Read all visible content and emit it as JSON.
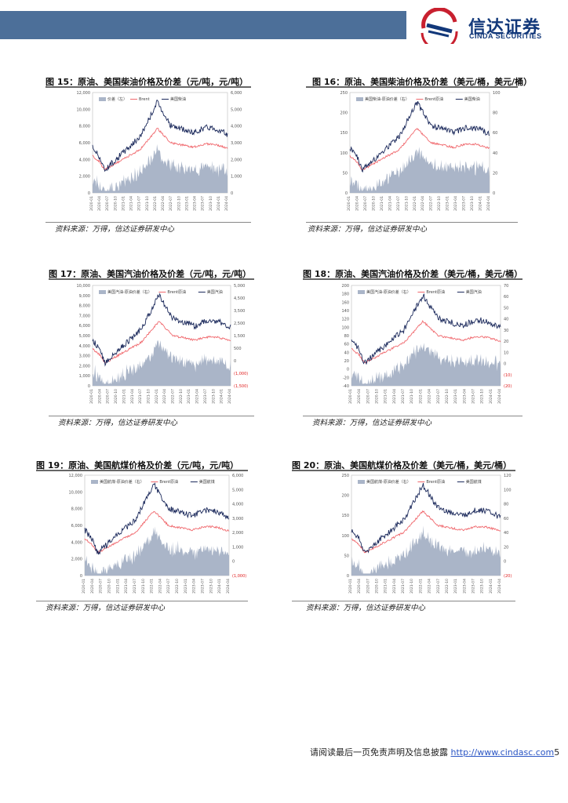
{
  "header": {
    "company_name": "信达证券",
    "company_name_en": "CINDA SECURITIES",
    "colors": {
      "bar": "#4c6f99",
      "logo_red": "#c8202f",
      "logo_blue": "#12387a"
    }
  },
  "figures": [
    {
      "title": "图 15：原油、美国柴油价格及价差（元/吨，元/吨）",
      "source": "资料来源：万得，信达证券研发中心",
      "chart_data": {
        "type": "area+line",
        "series": [
          {
            "name": "价差（左）",
            "kind": "area",
            "axis": "left"
          },
          {
            "name": "Brent",
            "kind": "line",
            "axis": "right"
          },
          {
            "name": "美国柴油",
            "kind": "line",
            "axis": "right"
          }
        ],
        "left_ticks": [
          "12,000",
          "10,000",
          "8,000",
          "6,000",
          "4,000",
          "2,000",
          "0"
        ],
        "right_ticks": [
          "6,000",
          "5,000",
          "4,000",
          "3,000",
          "2,000",
          "1,000",
          "0"
        ],
        "x_ticks": [
          "2020-01",
          "2020-04",
          "2020-07",
          "2020-10",
          "2021-01",
          "2021-04",
          "2021-07",
          "2021-10",
          "2022-01",
          "2022-04",
          "2022-07",
          "2022-10",
          "2023-01",
          "2023-04",
          "2023-07",
          "2023-10",
          "2024-01",
          "2024-04"
        ],
        "left_range": [
          0,
          12000
        ],
        "right_range": [
          0,
          6000
        ]
      }
    },
    {
      "title": "图 16：原油、美国柴油价格及价差（美元/桶，美元/桶）",
      "source": "资料来源：万得，信达证券研发中心",
      "chart_data": {
        "type": "area+line",
        "series": [
          {
            "name": "美国柴油-原油价差（右）",
            "kind": "area",
            "axis": "right"
          },
          {
            "name": "Brent原油",
            "kind": "line",
            "axis": "left"
          },
          {
            "name": "美国柴油",
            "kind": "line",
            "axis": "left"
          }
        ],
        "left_ticks": [
          "250",
          "200",
          "150",
          "100",
          "50",
          "0"
        ],
        "right_ticks": [
          "100",
          "80",
          "60",
          "40",
          "20",
          "0"
        ],
        "x_ticks": [
          "2020-01",
          "2020-04",
          "2020-07",
          "2020-10",
          "2021-01",
          "2021-04",
          "2021-07",
          "2021-10",
          "2022-01",
          "2022-04",
          "2022-07",
          "2022-10",
          "2023-01",
          "2023-04",
          "2023-07",
          "2023-10",
          "2024-01",
          "2024-04"
        ],
        "left_range": [
          0,
          250
        ],
        "right_range": [
          0,
          100
        ]
      }
    },
    {
      "title": "图 17：原油、美国汽油价格及价差（元/吨，元/吨）",
      "source": "资料来源：万得，信达证券研发中心",
      "chart_data": {
        "type": "area+line",
        "series": [
          {
            "name": "美国汽油-原油价差（右）",
            "kind": "area",
            "axis": "right"
          },
          {
            "name": "Brent原油",
            "kind": "line",
            "axis": "left"
          },
          {
            "name": "美国汽油",
            "kind": "line",
            "axis": "left"
          }
        ],
        "left_ticks": [
          "10,000",
          "9,000",
          "8,000",
          "7,000",
          "6,000",
          "5,000",
          "4,000",
          "3,000",
          "2,000",
          "1,000",
          "0"
        ],
        "right_ticks": [
          "5,000",
          "4,500",
          "3,500",
          "2,500",
          "1,500",
          "500",
          "0",
          "(1,000)",
          "(1,500)"
        ],
        "x_ticks": [
          "2020-01",
          "2020-04",
          "2020-07",
          "2020-10",
          "2021-01",
          "2021-04",
          "2021-07",
          "2021-10",
          "2022-01",
          "2022-04",
          "2022-07",
          "2022-10",
          "2023-01",
          "2023-04",
          "2023-07",
          "2023-10",
          "2024-01",
          "2024-04"
        ],
        "left_range": [
          0,
          10000
        ],
        "right_range": [
          -1500,
          5000
        ]
      }
    },
    {
      "title": "图 18：原油、美国汽油价格及价差（美元/桶，美元/桶）",
      "source": "资料来源：万得，信达证券研发中心",
      "chart_data": {
        "type": "area+line",
        "series": [
          {
            "name": "美国汽油-原油价差（右）",
            "kind": "area",
            "axis": "right"
          },
          {
            "name": "Brent原油",
            "kind": "line",
            "axis": "left"
          },
          {
            "name": "美国汽油",
            "kind": "line",
            "axis": "left"
          }
        ],
        "left_ticks": [
          "200",
          "180",
          "160",
          "140",
          "120",
          "100",
          "80",
          "60",
          "40",
          "20",
          "0",
          "-20",
          "-40"
        ],
        "right_ticks": [
          "70",
          "60",
          "50",
          "40",
          "30",
          "20",
          "10",
          "0",
          "(10)",
          "(20)"
        ],
        "x_ticks": [
          "2020-01",
          "2020-04",
          "2020-07",
          "2020-10",
          "2021-01",
          "2021-04",
          "2021-07",
          "2021-10",
          "2022-01",
          "2022-04",
          "2022-07",
          "2022-10",
          "2023-01",
          "2023-04",
          "2023-07",
          "2023-10",
          "2024-01",
          "2024-04"
        ],
        "left_range": [
          -40,
          200
        ],
        "right_range": [
          -20,
          70
        ]
      }
    },
    {
      "title": "图 19：原油、美国航煤价格及价差（元/吨，元/吨）",
      "source": "资料来源：万得，信达证券研发中心",
      "chart_data": {
        "type": "area+line",
        "series": [
          {
            "name": "美国航煤-原油价差（右）",
            "kind": "area",
            "axis": "right"
          },
          {
            "name": "Brent原油",
            "kind": "line",
            "axis": "left"
          },
          {
            "name": "美国航煤",
            "kind": "line",
            "axis": "left"
          }
        ],
        "left_ticks": [
          "12,000",
          "10,000",
          "8,000",
          "6,000",
          "4,000",
          "2,000",
          "0"
        ],
        "right_ticks": [
          "6,000",
          "5,000",
          "4,000",
          "3,000",
          "2,000",
          "1,000",
          "0",
          "(1,000)"
        ],
        "x_ticks": [
          "2020-01",
          "2020-04",
          "2020-07",
          "2020-10",
          "2021-01",
          "2021-04",
          "2021-07",
          "2021-10",
          "2022-01",
          "2022-04",
          "2022-07",
          "2022-10",
          "2023-01",
          "2023-04",
          "2023-07",
          "2023-10",
          "2024-01",
          "2024-04"
        ],
        "left_range": [
          0,
          12000
        ],
        "right_range": [
          -1000,
          6000
        ]
      }
    },
    {
      "title": "图 20：原油、美国航煤价格及价差（美元/桶，美元/桶）",
      "source": "资料来源：万得，信达证券研发中心",
      "chart_data": {
        "type": "area+line",
        "series": [
          {
            "name": "美国航煤-原油价差（右）",
            "kind": "area",
            "axis": "right"
          },
          {
            "name": "Brent原油",
            "kind": "line",
            "axis": "left"
          },
          {
            "name": "美国航煤",
            "kind": "line",
            "axis": "left"
          }
        ],
        "left_ticks": [
          "250",
          "200",
          "150",
          "100",
          "50",
          "0"
        ],
        "right_ticks": [
          "120",
          "100",
          "80",
          "60",
          "40",
          "20",
          "0",
          "(20)"
        ],
        "x_ticks": [
          "2020-01",
          "2020-04",
          "2020-07",
          "2020-10",
          "2021-01",
          "2021-04",
          "2021-07",
          "2021-10",
          "2022-01",
          "2022-04",
          "2022-07",
          "2022-10",
          "2023-01",
          "2023-04",
          "2023-07",
          "2023-10",
          "2024-01",
          "2024-04"
        ],
        "left_range": [
          0,
          250
        ],
        "right_range": [
          -20,
          120
        ]
      }
    }
  ],
  "chart_colors": {
    "area": "#aab5c8",
    "brent": "#f0696e",
    "product": "#1c2a5c",
    "neg_tick": "#e02020"
  },
  "footer": {
    "text": "请阅读最后一页免责声明及信息披露 ",
    "link": "http://www.cindasc.com",
    "page": "5"
  }
}
